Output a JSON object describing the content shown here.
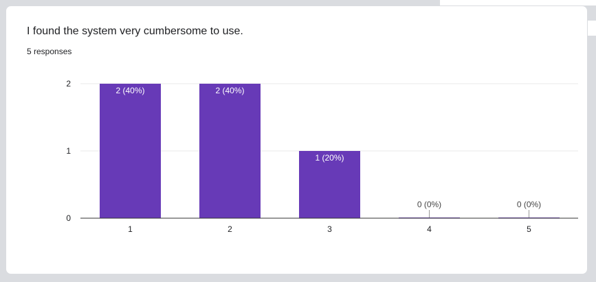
{
  "question": {
    "title": "I found the system very cumbersome to use.",
    "responses": "5 responses"
  },
  "colors": {
    "bar": "#673ab7",
    "grid": "#e8e8e8",
    "axis": "#333333",
    "bar_label_inside": "#ffffff",
    "bar_label_outside": "#444444"
  },
  "chart_data": {
    "type": "bar",
    "categories": [
      "1",
      "2",
      "3",
      "4",
      "5"
    ],
    "values": [
      2,
      2,
      1,
      0,
      0
    ],
    "data_labels": [
      "2 (40%)",
      "2 (40%)",
      "1 (20%)",
      "0 (0%)",
      "0 (0%)"
    ],
    "yticks": [
      "0",
      "1",
      "2"
    ],
    "ylim": [
      0,
      2
    ],
    "title": "I found the system very cumbersome to use.",
    "xlabel": "",
    "ylabel": "",
    "grid": true,
    "legend": "none"
  }
}
